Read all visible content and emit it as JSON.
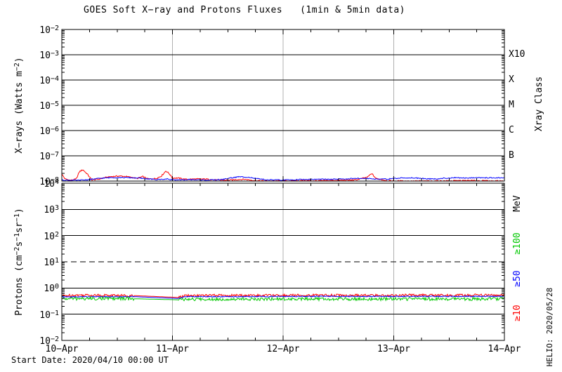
{
  "watermark": "HELIO: 2020/05/28",
  "footer": {
    "start_date": "Start Date: 2020/04/10 00:00 UT"
  },
  "chart_data": {
    "type": "line",
    "title": "GOES Soft X−ray and Protons Fluxes   (1min & 5min data)",
    "x": {
      "tick_labels": [
        "10−Apr",
        "11−Apr",
        "12−Apr",
        "13−Apr",
        "14−Apr"
      ],
      "range_days": [
        0,
        4
      ],
      "minor_tick_days": 0.25,
      "day_gridlines": [
        1,
        2,
        3
      ],
      "gridline_color": "#b0b0b0"
    },
    "panels": [
      {
        "id": "xray",
        "ylabel_parts": [
          {
            "t": "X−rays (Watts m"
          },
          {
            "sup": "−2"
          },
          {
            "t": ")"
          }
        ],
        "ylog_range": [
          -8,
          -2
        ],
        "ytick_exponents": [
          -2,
          -3,
          -4,
          -5,
          -6,
          -7,
          -8
        ],
        "solid_gridline_exponents": [
          -3,
          -4,
          -5,
          -6,
          -7
        ],
        "dashed_gridline_exponents": [],
        "right_axis_title": "Xray Class",
        "right_labels": [
          {
            "text": "X10",
            "log_level": -3,
            "color": "#000000"
          },
          {
            "text": "X",
            "log_level": -4,
            "color": "#000000"
          },
          {
            "text": "M",
            "log_level": -5,
            "color": "#000000"
          },
          {
            "text": "C",
            "log_level": -6,
            "color": "#000000"
          },
          {
            "text": "B",
            "log_level": -7,
            "color": "#000000"
          }
        ],
        "series": [
          {
            "name": "xray-red",
            "color": "#ff0000",
            "noise": 0.025,
            "smooth_ranges": [],
            "points": [
              [
                0.0,
                -7.72
              ],
              [
                0.03,
                -7.92
              ],
              [
                0.08,
                -7.97
              ],
              [
                0.13,
                -7.92
              ],
              [
                0.16,
                -7.62
              ],
              [
                0.19,
                -7.55
              ],
              [
                0.23,
                -7.72
              ],
              [
                0.27,
                -7.95
              ],
              [
                0.33,
                -7.93
              ],
              [
                0.38,
                -7.87
              ],
              [
                0.45,
                -7.82
              ],
              [
                0.52,
                -7.8
              ],
              [
                0.58,
                -7.82
              ],
              [
                0.63,
                -7.85
              ],
              [
                0.68,
                -7.9
              ],
              [
                0.73,
                -7.82
              ],
              [
                0.78,
                -7.92
              ],
              [
                0.85,
                -7.9
              ],
              [
                0.9,
                -7.8
              ],
              [
                0.94,
                -7.6
              ],
              [
                0.97,
                -7.7
              ],
              [
                1.0,
                -7.88
              ],
              [
                1.05,
                -7.88
              ],
              [
                1.12,
                -7.93
              ],
              [
                1.2,
                -7.92
              ],
              [
                1.3,
                -7.92
              ],
              [
                1.4,
                -7.96
              ],
              [
                1.5,
                -7.97
              ],
              [
                1.58,
                -7.94
              ],
              [
                1.65,
                -7.93
              ],
              [
                1.75,
                -7.98
              ],
              [
                1.9,
                -8.0
              ],
              [
                2.05,
                -7.99
              ],
              [
                2.2,
                -7.98
              ],
              [
                2.35,
                -7.99
              ],
              [
                2.5,
                -7.97
              ],
              [
                2.65,
                -7.96
              ],
              [
                2.76,
                -7.85
              ],
              [
                2.8,
                -7.7
              ],
              [
                2.84,
                -7.9
              ],
              [
                2.95,
                -7.99
              ],
              [
                3.1,
                -8.0
              ],
              [
                3.3,
                -8.0
              ],
              [
                3.5,
                -7.99
              ],
              [
                3.7,
                -7.98
              ],
              [
                3.85,
                -7.99
              ],
              [
                4.0,
                -8.0
              ]
            ]
          },
          {
            "name": "xray-blue",
            "color": "#0000ff",
            "noise": 0.02,
            "smooth_ranges": [],
            "points": [
              [
                0.0,
                -7.96
              ],
              [
                0.15,
                -7.97
              ],
              [
                0.25,
                -7.94
              ],
              [
                0.35,
                -7.89
              ],
              [
                0.45,
                -7.86
              ],
              [
                0.55,
                -7.86
              ],
              [
                0.65,
                -7.87
              ],
              [
                0.75,
                -7.9
              ],
              [
                0.85,
                -7.94
              ],
              [
                0.95,
                -7.92
              ],
              [
                1.05,
                -7.96
              ],
              [
                1.15,
                -7.94
              ],
              [
                1.3,
                -7.96
              ],
              [
                1.45,
                -7.94
              ],
              [
                1.52,
                -7.88
              ],
              [
                1.6,
                -7.83
              ],
              [
                1.68,
                -7.84
              ],
              [
                1.75,
                -7.9
              ],
              [
                1.85,
                -7.95
              ],
              [
                2.0,
                -7.96
              ],
              [
                2.15,
                -7.94
              ],
              [
                2.3,
                -7.93
              ],
              [
                2.45,
                -7.93
              ],
              [
                2.6,
                -7.91
              ],
              [
                2.75,
                -7.89
              ],
              [
                2.85,
                -7.92
              ],
              [
                2.95,
                -7.92
              ],
              [
                3.05,
                -7.88
              ],
              [
                3.15,
                -7.87
              ],
              [
                3.25,
                -7.89
              ],
              [
                3.35,
                -7.92
              ],
              [
                3.45,
                -7.89
              ],
              [
                3.55,
                -7.87
              ],
              [
                3.65,
                -7.88
              ],
              [
                3.75,
                -7.86
              ],
              [
                3.85,
                -7.87
              ],
              [
                4.0,
                -7.87
              ]
            ]
          }
        ]
      },
      {
        "id": "protons",
        "ylabel_parts": [
          {
            "t": "Protons (cm"
          },
          {
            "sup": "−2"
          },
          {
            "t": "s"
          },
          {
            "sup": "−1"
          },
          {
            "t": "sr"
          },
          {
            "sup": "−1"
          },
          {
            "t": ")"
          }
        ],
        "ylog_range": [
          -2,
          4
        ],
        "ytick_exponents": [
          4,
          3,
          2,
          1,
          0,
          -1,
          -2
        ],
        "solid_gridline_exponents": [
          3,
          2,
          0,
          -1
        ],
        "dashed_gridline_exponents": [
          1
        ],
        "right_axis_title": "MeV",
        "right_labels": [
          {
            "text": "≥100",
            "log_level": 1.7,
            "color": "#00c800"
          },
          {
            "text": "≥50",
            "log_level": 0.35,
            "color": "#0000ff"
          },
          {
            "text": "≥10",
            "log_level": -0.95,
            "color": "#ff0000"
          }
        ],
        "series": [
          {
            "name": "protons-ge10",
            "color": "#ff0000",
            "noise": 0.045,
            "smooth_ranges": [
              [
                0.65,
                1.05
              ]
            ],
            "points": [
              [
                0.0,
                -0.3
              ],
              [
                0.1,
                -0.27
              ],
              [
                0.3,
                -0.27
              ],
              [
                0.5,
                -0.28
              ],
              [
                0.65,
                -0.29
              ],
              [
                1.05,
                -0.36
              ],
              [
                1.12,
                -0.29
              ],
              [
                1.4,
                -0.28
              ],
              [
                1.7,
                -0.28
              ],
              [
                2.0,
                -0.28
              ],
              [
                2.3,
                -0.27
              ],
              [
                2.6,
                -0.28
              ],
              [
                2.9,
                -0.28
              ],
              [
                3.2,
                -0.27
              ],
              [
                3.5,
                -0.28
              ],
              [
                3.75,
                -0.27
              ],
              [
                4.0,
                -0.27
              ]
            ]
          },
          {
            "name": "protons-ge50",
            "color": "#0000ff",
            "noise": 0.018,
            "smooth_ranges": [
              [
                0.65,
                1.05
              ]
            ],
            "points": [
              [
                0.0,
                -0.34
              ],
              [
                0.3,
                -0.33
              ],
              [
                0.65,
                -0.33
              ],
              [
                1.05,
                -0.4
              ],
              [
                1.12,
                -0.33
              ],
              [
                1.6,
                -0.33
              ],
              [
                2.1,
                -0.32
              ],
              [
                2.6,
                -0.32
              ],
              [
                3.1,
                -0.32
              ],
              [
                3.6,
                -0.32
              ],
              [
                4.0,
                -0.32
              ]
            ]
          },
          {
            "name": "protons-ge100",
            "color": "#00c800",
            "noise": 0.06,
            "smooth_ranges": [
              [
                0.65,
                1.05
              ]
            ],
            "points": [
              [
                0.0,
                -0.41
              ],
              [
                0.3,
                -0.4
              ],
              [
                0.65,
                -0.41
              ],
              [
                1.05,
                -0.45
              ],
              [
                1.12,
                -0.43
              ],
              [
                1.6,
                -0.42
              ],
              [
                2.1,
                -0.42
              ],
              [
                2.6,
                -0.42
              ],
              [
                3.1,
                -0.42
              ],
              [
                3.6,
                -0.42
              ],
              [
                4.0,
                -0.41
              ]
            ]
          }
        ]
      }
    ]
  }
}
